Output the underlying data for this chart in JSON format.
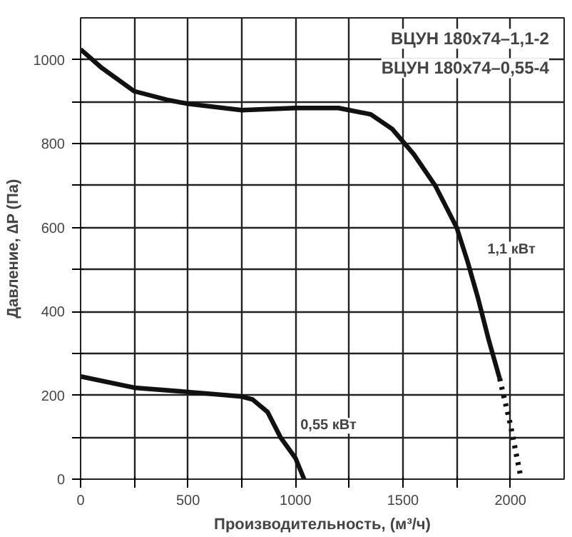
{
  "chart_data": {
    "type": "line",
    "xlabel": "Производительность, (м³/ч)",
    "ylabel": "Давление, ∆P (Па)",
    "annotations": [
      "ВЦУН 180x74–1,1-2",
      "ВЦУН 180x74–0,55-4"
    ],
    "series": [
      {
        "name": "1,1 кВт",
        "color": "#111111",
        "x": [
          0,
          100,
          250,
          400,
          500,
          750,
          1000,
          1200,
          1350,
          1450,
          1550,
          1650,
          1750,
          1800,
          1850,
          1900,
          1950
        ],
        "values": [
          1025,
          980,
          925,
          905,
          895,
          880,
          885,
          885,
          870,
          835,
          775,
          700,
          600,
          520,
          430,
          330,
          240
        ]
      },
      {
        "color": "#111111",
        "line_style": "dotted",
        "x": [
          1950,
          2000,
          2050
        ],
        "values": [
          240,
          130,
          0
        ]
      },
      {
        "name": "0,55 кВт",
        "color": "#111111",
        "x": [
          0,
          250,
          500,
          750,
          800,
          870,
          930,
          1000,
          1040
        ],
        "values": [
          245,
          218,
          208,
          197,
          190,
          160,
          100,
          50,
          0
        ]
      }
    ],
    "xlim": [
      0,
      2250
    ],
    "ylim": [
      0,
      1100
    ],
    "xticks": [
      0,
      {
        "value": 250,
        "label": null
      },
      500,
      {
        "value": 750,
        "label": null
      },
      1000,
      {
        "value": 1250,
        "label": null
      },
      1500,
      {
        "value": 1750,
        "label": null
      },
      2000
    ],
    "yticks": [
      0,
      {
        "value": 100,
        "label": null
      },
      200,
      {
        "value": 300,
        "label": null
      },
      400,
      {
        "value": 500,
        "label": null
      },
      600,
      {
        "value": 700,
        "label": null
      },
      800,
      {
        "value": 900,
        "label": null
      },
      1000
    ],
    "grid": true,
    "line_style": "solid"
  }
}
